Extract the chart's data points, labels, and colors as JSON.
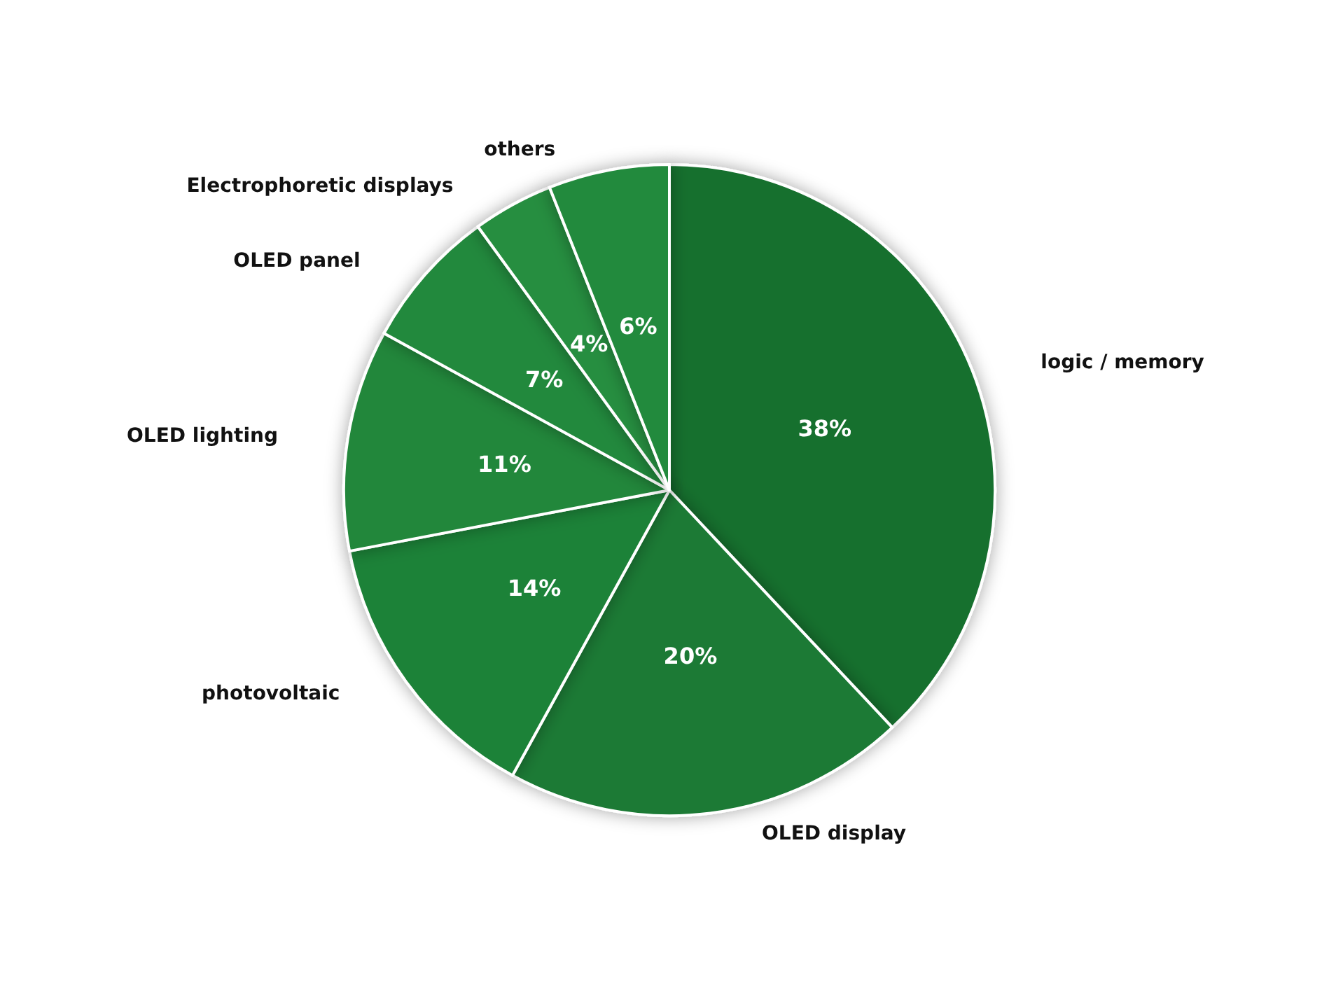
{
  "chart_data": {
    "type": "pie",
    "categories": [
      "logic / memory",
      "OLED display",
      "photovoltaic",
      "OLED lighting",
      "OLED panel",
      "Electrophoretic displays",
      "others"
    ],
    "values": [
      38,
      20,
      14,
      11,
      7,
      4,
      6
    ],
    "colors": [
      "#17702f",
      "#1a7a35",
      "#1e8238",
      "#21873b",
      "#23893d",
      "#268e40",
      "#238a3e"
    ],
    "value_labels": [
      "38%",
      "20%",
      "14%",
      "11%",
      "7%",
      "4%",
      "6%"
    ],
    "legend": false
  }
}
